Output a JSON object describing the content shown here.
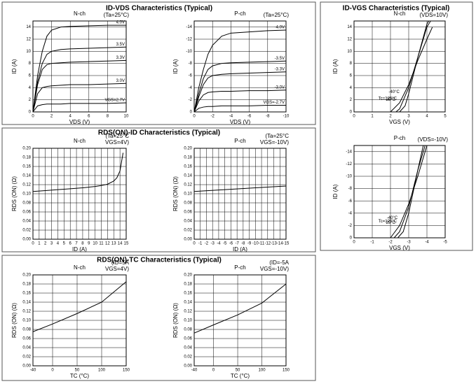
{
  "chart_data": [
    {
      "type": "line",
      "title": "ID-VDS Characteristics (Typical)",
      "subtitle": "N-ch",
      "annotation": [
        "(Ta=25°C)"
      ],
      "xlabel": "VDS (V)",
      "ylabel": "ID (A)",
      "xlim": [
        0,
        10
      ],
      "ylim": [
        0,
        15
      ],
      "xticks": [
        0,
        2,
        4,
        6,
        8,
        10
      ],
      "yticks": [
        0,
        2,
        4,
        6,
        8,
        10,
        12,
        14
      ],
      "series": [
        {
          "name": "4.0V",
          "color": "#000000",
          "x": [
            0,
            0.5,
            1,
            1.5,
            2,
            3,
            4,
            6,
            8,
            10
          ],
          "values": [
            0,
            6,
            10,
            12.5,
            13.5,
            14,
            14.1,
            14.2,
            14.3,
            14.3
          ]
        },
        {
          "name": "3.5V",
          "color": "#000000",
          "x": [
            0,
            0.5,
            1,
            1.5,
            2,
            3,
            4,
            6,
            8,
            10
          ],
          "values": [
            0,
            5,
            8,
            9.5,
            10,
            10.3,
            10.4,
            10.5,
            10.6,
            10.7
          ]
        },
        {
          "name": "3.3V",
          "color": "#000000",
          "x": [
            0,
            0.5,
            1,
            1.5,
            2,
            3,
            4,
            6,
            8,
            10
          ],
          "values": [
            0,
            4.5,
            7,
            7.8,
            8,
            8.1,
            8.2,
            8.3,
            8.4,
            8.5
          ]
        },
        {
          "name": "3.0V",
          "color": "#000000",
          "x": [
            0,
            0.5,
            1,
            1.5,
            2,
            3,
            4,
            6,
            8,
            10
          ],
          "values": [
            0,
            3,
            4,
            4.2,
            4.3,
            4.4,
            4.5,
            4.5,
            4.6,
            4.7
          ]
        },
        {
          "name": "VGS=2.7V",
          "color": "#000000",
          "x": [
            0,
            0.5,
            1,
            1.5,
            2,
            3,
            4,
            6,
            8,
            10
          ],
          "values": [
            0,
            1,
            1.2,
            1.3,
            1.3,
            1.3,
            1.4,
            1.4,
            1.4,
            1.5
          ]
        }
      ]
    },
    {
      "type": "line",
      "subtitle": "P-ch",
      "annotation": [
        "(Ta=25°C)"
      ],
      "xlabel": "VDS (V)",
      "ylabel": "ID (A)",
      "xlim": [
        0,
        -10
      ],
      "ylim": [
        0,
        -15
      ],
      "xticks": [
        0,
        -2,
        -4,
        -6,
        -8,
        -10
      ],
      "yticks": [
        0,
        -2,
        -4,
        -6,
        -8,
        -10,
        -12,
        -14
      ],
      "series": [
        {
          "name": "-4.0V",
          "color": "#000000",
          "x": [
            0,
            -0.5,
            -1,
            -1.5,
            -2,
            -3,
            -4,
            -6,
            -8,
            -10
          ],
          "values": [
            0,
            -4,
            -7,
            -9.5,
            -11,
            -12.5,
            -13,
            -13.2,
            -13.4,
            -13.5
          ]
        },
        {
          "name": "-3.5V",
          "color": "#000000",
          "x": [
            0,
            -0.5,
            -1,
            -1.5,
            -2,
            -3,
            -4,
            -6,
            -8,
            -10
          ],
          "values": [
            0,
            -3,
            -5.5,
            -7,
            -7.6,
            -8,
            -8.1,
            -8.2,
            -8.3,
            -8.4
          ]
        },
        {
          "name": "-3.3V",
          "color": "#000000",
          "x": [
            0,
            -0.5,
            -1,
            -1.5,
            -2,
            -3,
            -4,
            -6,
            -8,
            -10
          ],
          "values": [
            0,
            -2.5,
            -4.5,
            -5.6,
            -6,
            -6.2,
            -6.3,
            -6.4,
            -6.5,
            -6.6
          ]
        },
        {
          "name": "-3.0V",
          "color": "#000000",
          "x": [
            0,
            -0.5,
            -1,
            -1.5,
            -2,
            -3,
            -4,
            -6,
            -8,
            -10
          ],
          "values": [
            0,
            -1.8,
            -2.8,
            -3.2,
            -3.3,
            -3.4,
            -3.4,
            -3.5,
            -3.5,
            -3.6
          ]
        },
        {
          "name": "VGS=-2.7V",
          "color": "#000000",
          "x": [
            0,
            -0.5,
            -1,
            -1.5,
            -2,
            -3,
            -4,
            -6,
            -8,
            -10
          ],
          "values": [
            0,
            -0.6,
            -0.8,
            -0.9,
            -0.9,
            -1,
            -1,
            -1,
            -1.1,
            -1.1
          ]
        }
      ]
    },
    {
      "type": "line",
      "title": "ID-VGS Characteristics (Typical)",
      "subtitle": "N-ch",
      "annotation": [
        "(VDS=10V)"
      ],
      "xlabel": "VGS (V)",
      "ylabel": "ID (A)",
      "xlim": [
        0,
        5
      ],
      "ylim": [
        0,
        15
      ],
      "xticks": [
        0,
        1,
        2,
        3,
        4,
        5
      ],
      "yticks": [
        0,
        2,
        4,
        6,
        8,
        10,
        12,
        14
      ],
      "series": [
        {
          "name": "Tc=125°C",
          "color": "#000000",
          "x": [
            2.0,
            2.5,
            3,
            3.5,
            4,
            4.3
          ],
          "values": [
            0,
            1.5,
            4.5,
            8.5,
            12,
            14
          ]
        },
        {
          "name": "25°C",
          "color": "#000000",
          "x": [
            2.3,
            2.5,
            3,
            3.5,
            4,
            4.2
          ],
          "values": [
            0,
            0.5,
            4,
            9,
            14,
            15
          ]
        },
        {
          "name": "-40°C",
          "color": "#000000",
          "x": [
            2.5,
            2.8,
            3,
            3.5,
            4,
            4.1
          ],
          "values": [
            0,
            1,
            3,
            9,
            14.5,
            15
          ]
        }
      ]
    },
    {
      "type": "line",
      "subtitle": "P-ch",
      "annotation": [
        "(VDS=-10V)"
      ],
      "xlabel": "VGS (V)",
      "ylabel": "ID (A)",
      "xlim": [
        0,
        -5
      ],
      "ylim": [
        0,
        -15
      ],
      "xticks": [
        0,
        -1,
        -2,
        -3,
        -4,
        -5
      ],
      "yticks": [
        0,
        -2,
        -4,
        -6,
        -8,
        -10,
        -12,
        -14
      ],
      "series": [
        {
          "name": "Tc=125°C",
          "color": "#000000",
          "x": [
            -2.0,
            -2.5,
            -3,
            -3.5,
            -4
          ],
          "values": [
            0,
            -2,
            -5.5,
            -10,
            -15
          ]
        },
        {
          "name": "25°C",
          "color": "#000000",
          "x": [
            -2.2,
            -2.5,
            -3,
            -3.5,
            -3.9
          ],
          "values": [
            0,
            -1,
            -5,
            -11,
            -15
          ]
        },
        {
          "name": "-40°C",
          "color": "#000000",
          "x": [
            -2.4,
            -2.7,
            -3,
            -3.5,
            -3.8
          ],
          "values": [
            0,
            -1,
            -4,
            -11,
            -15
          ]
        }
      ]
    },
    {
      "type": "line",
      "title": "RDS(ON)-ID Characteristics (Typical)",
      "subtitle": "N-ch",
      "annotation": [
        "(Ta=25°C",
        "VGS=4V)"
      ],
      "xlabel": "ID (A)",
      "ylabel": "RDS (ON) (Ω)",
      "xlim": [
        0,
        15
      ],
      "ylim": [
        0,
        0.2
      ],
      "xticks": [
        0,
        1,
        2,
        3,
        4,
        5,
        6,
        7,
        8,
        9,
        10,
        11,
        12,
        13,
        14,
        15
      ],
      "yticks": [
        {
          "value": 0,
          "label": "0.00"
        },
        0.02,
        0.04,
        0.06,
        0.08,
        {
          "value": 0.1,
          "label": "0.10"
        },
        0.12,
        0.14,
        0.16,
        0.18,
        {
          "value": 0.2,
          "label": "0.20"
        }
      ],
      "series": [
        {
          "color": "#000000",
          "x": [
            0,
            2,
            4,
            6,
            8,
            10,
            11,
            12,
            13,
            13.5,
            14,
            14.5
          ],
          "values": [
            0.105,
            0.107,
            0.109,
            0.111,
            0.113,
            0.116,
            0.118,
            0.121,
            0.128,
            0.135,
            0.15,
            0.19
          ]
        }
      ]
    },
    {
      "type": "line",
      "subtitle": "P-ch",
      "annotation": [
        "(Ta=25°C",
        "VGS=-10V)"
      ],
      "xlabel": "ID (A)",
      "ylabel": "RDS (ON) (Ω)",
      "xlim": [
        0,
        -15
      ],
      "ylim": [
        0,
        0.2
      ],
      "xticks": [
        0,
        -1,
        -2,
        -3,
        -4,
        -5,
        -6,
        -7,
        -8,
        -9,
        -10,
        -11,
        -12,
        -13,
        -14,
        -15
      ],
      "yticks": [
        {
          "value": 0,
          "label": "0.00"
        },
        0.02,
        0.04,
        0.06,
        0.08,
        {
          "value": 0.1,
          "label": "0.10"
        },
        0.12,
        0.14,
        0.16,
        0.18,
        {
          "value": 0.2,
          "label": "0.20"
        }
      ],
      "series": [
        {
          "color": "#000000",
          "x": [
            0,
            -5,
            -10,
            -15
          ],
          "values": [
            0.105,
            0.109,
            0.113,
            0.117
          ]
        }
      ]
    },
    {
      "type": "line",
      "title": "RDS(ON)-TC Characteristics (Typical)",
      "subtitle": "N-ch",
      "annotation": [
        "(ID=5A",
        "VGS=4V)"
      ],
      "xlabel": "TC (°C)",
      "ylabel": "RDS (ON) (Ω)",
      "xlim": [
        -40,
        150
      ],
      "ylim": [
        0,
        0.2
      ],
      "xticks": [
        -40,
        0,
        50,
        100,
        150
      ],
      "yticks": [
        {
          "value": 0,
          "label": "0.00"
        },
        0.02,
        0.04,
        0.06,
        0.08,
        {
          "value": 0.1,
          "label": "0.10"
        },
        0.12,
        0.14,
        0.16,
        0.18,
        {
          "value": 0.2,
          "label": "0.20"
        }
      ],
      "series": [
        {
          "color": "#000000",
          "x": [
            -40,
            0,
            50,
            100,
            150
          ],
          "values": [
            0.075,
            0.092,
            0.115,
            0.14,
            0.185
          ]
        }
      ]
    },
    {
      "type": "line",
      "subtitle": "P-ch",
      "annotation": [
        "(ID=-5A",
        "VGS=-10V)"
      ],
      "xlabel": "TC (°C)",
      "ylabel": "RDS (ON) (Ω)",
      "xlim": [
        -40,
        150
      ],
      "ylim": [
        0,
        0.2
      ],
      "xticks": [
        -40,
        0,
        50,
        100,
        150
      ],
      "yticks": [
        {
          "value": 0,
          "label": "0.00"
        },
        0.02,
        0.04,
        0.06,
        0.08,
        {
          "value": 0.1,
          "label": "0.10"
        },
        0.12,
        0.14,
        0.16,
        0.18,
        {
          "value": 0.2,
          "label": "0.20"
        }
      ],
      "series": [
        {
          "color": "#000000",
          "x": [
            -40,
            0,
            50,
            100,
            150
          ],
          "values": [
            0.072,
            0.09,
            0.112,
            0.138,
            0.18
          ]
        }
      ]
    }
  ]
}
